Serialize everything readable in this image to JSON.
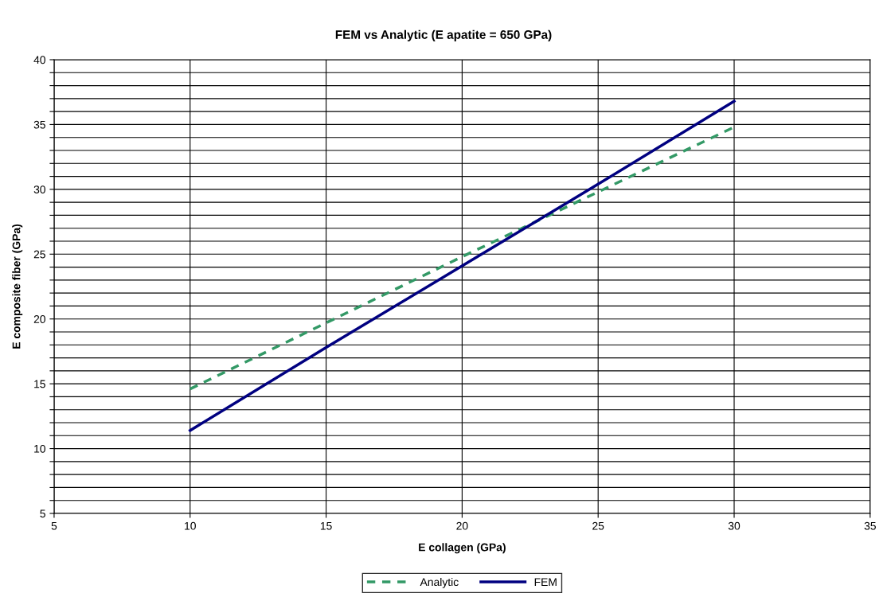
{
  "chart_data": {
    "type": "line",
    "title": "FEM vs Analytic (E apatite = 650 GPa)",
    "xlabel": "E collagen (GPa)",
    "ylabel": "E composite fiber (GPa)",
    "xlim": [
      5,
      35
    ],
    "xticks": [
      5,
      10,
      15,
      20,
      25,
      30,
      35
    ],
    "ylim": [
      5,
      40
    ],
    "yticks": [
      5,
      {
        "value": 6,
        "label": null
      },
      {
        "value": 7,
        "label": null
      },
      {
        "value": 8,
        "label": null
      },
      {
        "value": 9,
        "label": null
      },
      10,
      {
        "value": 11,
        "label": null
      },
      {
        "value": 12,
        "label": null
      },
      {
        "value": 13,
        "label": null
      },
      {
        "value": 14,
        "label": null
      },
      15,
      {
        "value": 16,
        "label": null
      },
      {
        "value": 17,
        "label": null
      },
      {
        "value": 18,
        "label": null
      },
      {
        "value": 19,
        "label": null
      },
      20,
      {
        "value": 21,
        "label": null
      },
      {
        "value": 22,
        "label": null
      },
      {
        "value": 23,
        "label": null
      },
      {
        "value": 24,
        "label": null
      },
      25,
      {
        "value": 26,
        "label": null
      },
      {
        "value": 27,
        "label": null
      },
      {
        "value": 28,
        "label": null
      },
      {
        "value": 29,
        "label": null
      },
      30,
      {
        "value": 31,
        "label": null
      },
      {
        "value": 32,
        "label": null
      },
      {
        "value": 33,
        "label": null
      },
      {
        "value": 34,
        "label": null
      },
      35,
      {
        "value": 36,
        "label": null
      },
      {
        "value": 37,
        "label": null
      },
      {
        "value": 38,
        "label": null
      },
      {
        "value": 39,
        "label": null
      },
      40
    ],
    "grid": true,
    "legend": "bottom",
    "marker": "none",
    "series": [
      {
        "name": "Analytic",
        "color": "#339966",
        "line_style": "dashed",
        "x": [
          10,
          15,
          20,
          25,
          30
        ],
        "values": [
          14.6,
          19.7,
          24.8,
          29.8,
          34.8
        ]
      },
      {
        "name": "FEM",
        "color": "#000080",
        "line_style": "solid",
        "x": [
          10,
          15,
          20,
          25,
          30
        ],
        "values": [
          11.4,
          17.8,
          24.1,
          30.4,
          36.8
        ]
      }
    ]
  }
}
